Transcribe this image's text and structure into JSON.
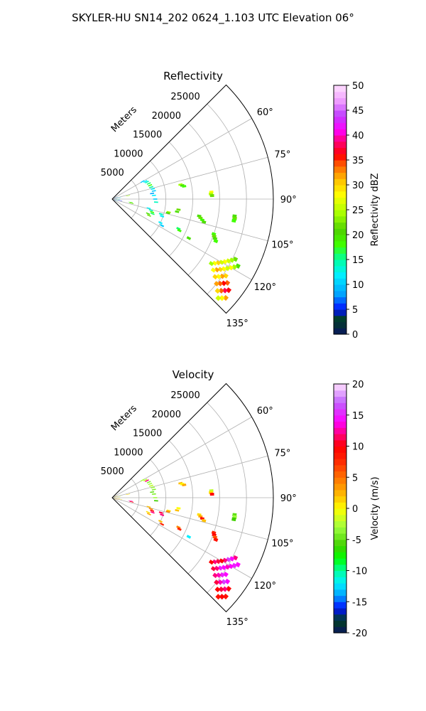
{
  "figure": {
    "title": "SKYLER-HU  SN14_202  0624_1.103 UTC Elevation 06°"
  },
  "chart_data": [
    {
      "type": "heatmap",
      "projection": "polar-sector",
      "title": "Reflectivity",
      "radial_label": "Meters",
      "radial_ticks": [
        5000,
        10000,
        15000,
        20000,
        25000
      ],
      "r_max": 30000,
      "theta_range_deg": [
        45,
        135
      ],
      "theta_ticks": [
        60,
        75,
        90,
        105,
        120,
        135
      ],
      "grid": true,
      "colorbar": {
        "label": "Reflectivity dBZ",
        "min": 0,
        "max": 50,
        "ticks": [
          0,
          5,
          10,
          15,
          20,
          25,
          30,
          35,
          40,
          45,
          50
        ],
        "placement": "right",
        "stops": [
          [
            0,
            "#0a1560"
          ],
          [
            3,
            "#004020"
          ],
          [
            5,
            "#0010ff"
          ],
          [
            8,
            "#00a0ff"
          ],
          [
            12,
            "#00f0ff"
          ],
          [
            15,
            "#00ffa0"
          ],
          [
            18,
            "#40ff00"
          ],
          [
            21,
            "#50d000"
          ],
          [
            24,
            "#a0ff00"
          ],
          [
            28,
            "#ffff00"
          ],
          [
            31,
            "#ffc000"
          ],
          [
            34,
            "#ff6000"
          ],
          [
            36,
            "#ff0000"
          ],
          [
            39,
            "#ff0080"
          ],
          [
            41,
            "#ff00ff"
          ],
          [
            44,
            "#c040ff"
          ],
          [
            47,
            "#f0a0ff"
          ],
          [
            50,
            "#ffe0ff"
          ]
        ]
      },
      "cells": [
        {
          "az": 78,
          "r": 13000,
          "v": 24
        },
        {
          "az": 79,
          "r": 13300,
          "v": 20
        },
        {
          "az": 80,
          "r": 13600,
          "v": 18
        },
        {
          "az": 86,
          "r": 18500,
          "v": 28
        },
        {
          "az": 87,
          "r": 18400,
          "v": 25
        },
        {
          "az": 88,
          "r": 18600,
          "v": 22
        },
        {
          "az": 98,
          "r": 23000,
          "v": 20
        },
        {
          "az": 99,
          "r": 23100,
          "v": 22
        },
        {
          "az": 100,
          "r": 23000,
          "v": 18
        },
        {
          "az": 101,
          "r": 16500,
          "v": 20
        },
        {
          "az": 102,
          "r": 16800,
          "v": 22
        },
        {
          "az": 103,
          "r": 17200,
          "v": 18
        },
        {
          "az": 104,
          "r": 17600,
          "v": 20
        },
        {
          "az": 99,
          "r": 12500,
          "v": 22
        },
        {
          "az": 101,
          "r": 12300,
          "v": 20
        },
        {
          "az": 103,
          "r": 10800,
          "v": 24
        },
        {
          "az": 104,
          "r": 10700,
          "v": 20
        },
        {
          "az": 109,
          "r": 20000,
          "v": 18
        },
        {
          "az": 110,
          "r": 20200,
          "v": 22
        },
        {
          "az": 111,
          "r": 20500,
          "v": 20
        },
        {
          "az": 112,
          "r": 20800,
          "v": 18
        },
        {
          "az": 114,
          "r": 13500,
          "v": 16
        },
        {
          "az": 115,
          "r": 13800,
          "v": 18
        },
        {
          "az": 117,
          "r": 16000,
          "v": 20
        },
        {
          "az": 116,
          "r": 25500,
          "v": 22
        },
        {
          "az": 117,
          "r": 25000,
          "v": 24
        },
        {
          "az": 118,
          "r": 24500,
          "v": 26
        },
        {
          "az": 119,
          "r": 24000,
          "v": 28
        },
        {
          "az": 120,
          "r": 23500,
          "v": 26
        },
        {
          "az": 121,
          "r": 23000,
          "v": 30
        },
        {
          "az": 122,
          "r": 22500,
          "v": 28
        },
        {
          "az": 123,
          "r": 22000,
          "v": 24
        },
        {
          "az": 118,
          "r": 26500,
          "v": 20
        },
        {
          "az": 119,
          "r": 26000,
          "v": 24
        },
        {
          "az": 120,
          "r": 25500,
          "v": 28
        },
        {
          "az": 121,
          "r": 25000,
          "v": 26
        },
        {
          "az": 122,
          "r": 24500,
          "v": 28
        },
        {
          "az": 123,
          "r": 24000,
          "v": 30
        },
        {
          "az": 124,
          "r": 23500,
          "v": 32
        },
        {
          "az": 125,
          "r": 23000,
          "v": 28
        },
        {
          "az": 124,
          "r": 25500,
          "v": 30
        },
        {
          "az": 125,
          "r": 25000,
          "v": 32
        },
        {
          "az": 126,
          "r": 24500,
          "v": 28
        },
        {
          "az": 127,
          "r": 24000,
          "v": 30
        },
        {
          "az": 126,
          "r": 26500,
          "v": 34
        },
        {
          "az": 127,
          "r": 26000,
          "v": 36
        },
        {
          "az": 128,
          "r": 25500,
          "v": 34
        },
        {
          "az": 129,
          "r": 25000,
          "v": 32
        },
        {
          "az": 128,
          "r": 27500,
          "v": 36
        },
        {
          "az": 129,
          "r": 27000,
          "v": 38
        },
        {
          "az": 130,
          "r": 26500,
          "v": 34
        },
        {
          "az": 131,
          "r": 26000,
          "v": 30
        },
        {
          "az": 131,
          "r": 28000,
          "v": 32
        },
        {
          "az": 132,
          "r": 27500,
          "v": 28
        },
        {
          "az": 133,
          "r": 27000,
          "v": 26
        },
        {
          "az": 60,
          "r": 6500,
          "v": 10
        },
        {
          "az": 62,
          "r": 7000,
          "v": 12
        },
        {
          "az": 64,
          "r": 7200,
          "v": 14
        },
        {
          "az": 67,
          "r": 7400,
          "v": 16
        },
        {
          "az": 70,
          "r": 7500,
          "v": 18
        },
        {
          "az": 73,
          "r": 7600,
          "v": 15
        },
        {
          "az": 76,
          "r": 7800,
          "v": 12
        },
        {
          "az": 79,
          "r": 7900,
          "v": 10
        },
        {
          "az": 82,
          "r": 7500,
          "v": 8
        },
        {
          "az": 85,
          "r": 7800,
          "v": 12
        },
        {
          "az": 90,
          "r": 8000,
          "v": 10
        },
        {
          "az": 94,
          "r": 8200,
          "v": 14
        },
        {
          "az": 104,
          "r": 7000,
          "v": 12
        },
        {
          "az": 106,
          "r": 7500,
          "v": 14
        },
        {
          "az": 108,
          "r": 7800,
          "v": 18
        },
        {
          "az": 110,
          "r": 8000,
          "v": 16
        },
        {
          "az": 112,
          "r": 7200,
          "v": 20
        },
        {
          "az": 114,
          "r": 7500,
          "v": 22
        },
        {
          "az": 107,
          "r": 9500,
          "v": 14
        },
        {
          "az": 109,
          "r": 9800,
          "v": 12
        },
        {
          "az": 100,
          "r": 3500,
          "v": 18
        },
        {
          "az": 102,
          "r": 3700,
          "v": 22
        },
        {
          "az": 78,
          "r": 3000,
          "v": 24
        },
        {
          "az": 116,
          "r": 10000,
          "v": 12
        },
        {
          "az": 118,
          "r": 10500,
          "v": 10
        },
        {
          "az": 50,
          "r": 500,
          "v": 6
        },
        {
          "az": 70,
          "r": 700,
          "v": 8
        },
        {
          "az": 90,
          "r": 500,
          "v": 4
        },
        {
          "az": 110,
          "r": 800,
          "v": 10
        },
        {
          "az": 80,
          "r": 1300,
          "v": 12
        },
        {
          "az": 100,
          "r": 1500,
          "v": 5
        },
        {
          "az": 120,
          "r": 400,
          "v": 6
        },
        {
          "az": 95,
          "r": 1000,
          "v": 14
        }
      ]
    },
    {
      "type": "heatmap",
      "projection": "polar-sector",
      "title": "Velocity",
      "radial_label": "Meters",
      "radial_ticks": [
        5000,
        10000,
        15000,
        20000,
        25000
      ],
      "r_max": 30000,
      "theta_range_deg": [
        45,
        135
      ],
      "theta_ticks": [
        60,
        75,
        90,
        105,
        120,
        135
      ],
      "grid": true,
      "colorbar": {
        "label": "Velocity (m/s)",
        "min": -20,
        "max": 20,
        "ticks": [
          -20,
          -15,
          -10,
          -5,
          0,
          5,
          10,
          15,
          20
        ],
        "placement": "right",
        "stops": [
          [
            -20,
            "#0a1560"
          ],
          [
            -18,
            "#004020"
          ],
          [
            -16,
            "#0010ff"
          ],
          [
            -14,
            "#00a0ff"
          ],
          [
            -12,
            "#00f0ff"
          ],
          [
            -10,
            "#00ffa0"
          ],
          [
            -8,
            "#00ff00"
          ],
          [
            -6,
            "#40d000"
          ],
          [
            -3,
            "#a0ff40"
          ],
          [
            0,
            "#ffff00"
          ],
          [
            2,
            "#ffc000"
          ],
          [
            5,
            "#ff7000"
          ],
          [
            8,
            "#ff2000"
          ],
          [
            10,
            "#ff0000"
          ],
          [
            12,
            "#ff0080"
          ],
          [
            14,
            "#ff00ff"
          ],
          [
            17,
            "#c060ff"
          ],
          [
            20,
            "#ffe0ff"
          ]
        ]
      },
      "cells": [
        {
          "az": 78,
          "r": 13000,
          "v": 2
        },
        {
          "az": 79,
          "r": 13300,
          "v": 0
        },
        {
          "az": 80,
          "r": 13600,
          "v": 3
        },
        {
          "az": 86,
          "r": 18500,
          "v": -2
        },
        {
          "az": 87,
          "r": 18400,
          "v": 1
        },
        {
          "az": 88,
          "r": 18600,
          "v": 10
        },
        {
          "az": 98,
          "r": 23000,
          "v": -5
        },
        {
          "az": 99,
          "r": 23100,
          "v": -3
        },
        {
          "az": 100,
          "r": 23000,
          "v": -6
        },
        {
          "az": 101,
          "r": 16500,
          "v": 1
        },
        {
          "az": 102,
          "r": 16800,
          "v": 3
        },
        {
          "az": 103,
          "r": 17200,
          "v": 9
        },
        {
          "az": 104,
          "r": 17600,
          "v": 2
        },
        {
          "az": 99,
          "r": 12500,
          "v": 0
        },
        {
          "az": 101,
          "r": 12300,
          "v": 2
        },
        {
          "az": 103,
          "r": 10800,
          "v": 1
        },
        {
          "az": 104,
          "r": 10700,
          "v": 4
        },
        {
          "az": 109,
          "r": 20000,
          "v": 8
        },
        {
          "az": 110,
          "r": 20200,
          "v": 10
        },
        {
          "az": 111,
          "r": 20500,
          "v": 6
        },
        {
          "az": 112,
          "r": 20800,
          "v": 9
        },
        {
          "az": 114,
          "r": 13500,
          "v": 4
        },
        {
          "az": 115,
          "r": 13800,
          "v": 8
        },
        {
          "az": 117,
          "r": 16000,
          "v": -12
        },
        {
          "az": 116,
          "r": 25500,
          "v": 12
        },
        {
          "az": 117,
          "r": 25000,
          "v": 14
        },
        {
          "az": 118,
          "r": 24500,
          "v": 16
        },
        {
          "az": 119,
          "r": 24000,
          "v": 12
        },
        {
          "az": 120,
          "r": 23500,
          "v": 10
        },
        {
          "az": 121,
          "r": 23000,
          "v": 11
        },
        {
          "az": 122,
          "r": 22500,
          "v": 12
        },
        {
          "az": 123,
          "r": 22000,
          "v": 10
        },
        {
          "az": 118,
          "r": 26500,
          "v": 14
        },
        {
          "az": 119,
          "r": 26000,
          "v": 15
        },
        {
          "az": 120,
          "r": 25500,
          "v": 14
        },
        {
          "az": 121,
          "r": 25000,
          "v": 13
        },
        {
          "az": 122,
          "r": 24500,
          "v": 14
        },
        {
          "az": 123,
          "r": 24000,
          "v": 15
        },
        {
          "az": 124,
          "r": 23500,
          "v": 12
        },
        {
          "az": 125,
          "r": 23000,
          "v": 11
        },
        {
          "az": 124,
          "r": 25500,
          "v": 14
        },
        {
          "az": 125,
          "r": 25000,
          "v": 15
        },
        {
          "az": 126,
          "r": 24500,
          "v": 13
        },
        {
          "az": 127,
          "r": 24000,
          "v": 12
        },
        {
          "az": 126,
          "r": 26500,
          "v": 14
        },
        {
          "az": 127,
          "r": 26000,
          "v": 16
        },
        {
          "az": 128,
          "r": 25500,
          "v": 13
        },
        {
          "az": 129,
          "r": 25000,
          "v": 11
        },
        {
          "az": 128,
          "r": 27500,
          "v": 10
        },
        {
          "az": 129,
          "r": 27000,
          "v": 12
        },
        {
          "az": 130,
          "r": 26500,
          "v": 11
        },
        {
          "az": 131,
          "r": 26000,
          "v": 10
        },
        {
          "az": 131,
          "r": 28000,
          "v": 9
        },
        {
          "az": 132,
          "r": 27500,
          "v": 10
        },
        {
          "az": 133,
          "r": 27000,
          "v": 9
        },
        {
          "az": 60,
          "r": 6500,
          "v": -3
        },
        {
          "az": 62,
          "r": 7000,
          "v": -2
        },
        {
          "az": 64,
          "r": 7200,
          "v": 12
        },
        {
          "az": 67,
          "r": 7400,
          "v": -4
        },
        {
          "az": 70,
          "r": 7500,
          "v": -3
        },
        {
          "az": 73,
          "r": 7600,
          "v": -2
        },
        {
          "az": 76,
          "r": 7800,
          "v": -3
        },
        {
          "az": 79,
          "r": 7900,
          "v": -4
        },
        {
          "az": 82,
          "r": 7500,
          "v": -5
        },
        {
          "az": 85,
          "r": 7800,
          "v": -4
        },
        {
          "az": 90,
          "r": 8000,
          "v": -3
        },
        {
          "az": 94,
          "r": 8200,
          "v": -6
        },
        {
          "az": 104,
          "r": 7000,
          "v": 2
        },
        {
          "az": 106,
          "r": 7500,
          "v": 4
        },
        {
          "az": 108,
          "r": 7800,
          "v": 10
        },
        {
          "az": 110,
          "r": 8000,
          "v": 12
        },
        {
          "az": 112,
          "r": 7200,
          "v": 1
        },
        {
          "az": 114,
          "r": 7500,
          "v": 3
        },
        {
          "az": 107,
          "r": 9500,
          "v": 11
        },
        {
          "az": 109,
          "r": 9800,
          "v": 12
        },
        {
          "az": 100,
          "r": 3500,
          "v": 13
        },
        {
          "az": 102,
          "r": 3700,
          "v": 10
        },
        {
          "az": 78,
          "r": 3000,
          "v": 1
        },
        {
          "az": 116,
          "r": 10000,
          "v": 2
        },
        {
          "az": 118,
          "r": 10500,
          "v": 8
        },
        {
          "az": 50,
          "r": 500,
          "v": 1
        },
        {
          "az": 70,
          "r": 700,
          "v": 2
        },
        {
          "az": 90,
          "r": 500,
          "v": 0
        },
        {
          "az": 110,
          "r": 800,
          "v": 3
        },
        {
          "az": 80,
          "r": 1300,
          "v": -2
        },
        {
          "az": 100,
          "r": 1500,
          "v": 1
        },
        {
          "az": 120,
          "r": 400,
          "v": 0
        },
        {
          "az": 95,
          "r": 1000,
          "v": 2
        }
      ]
    }
  ]
}
